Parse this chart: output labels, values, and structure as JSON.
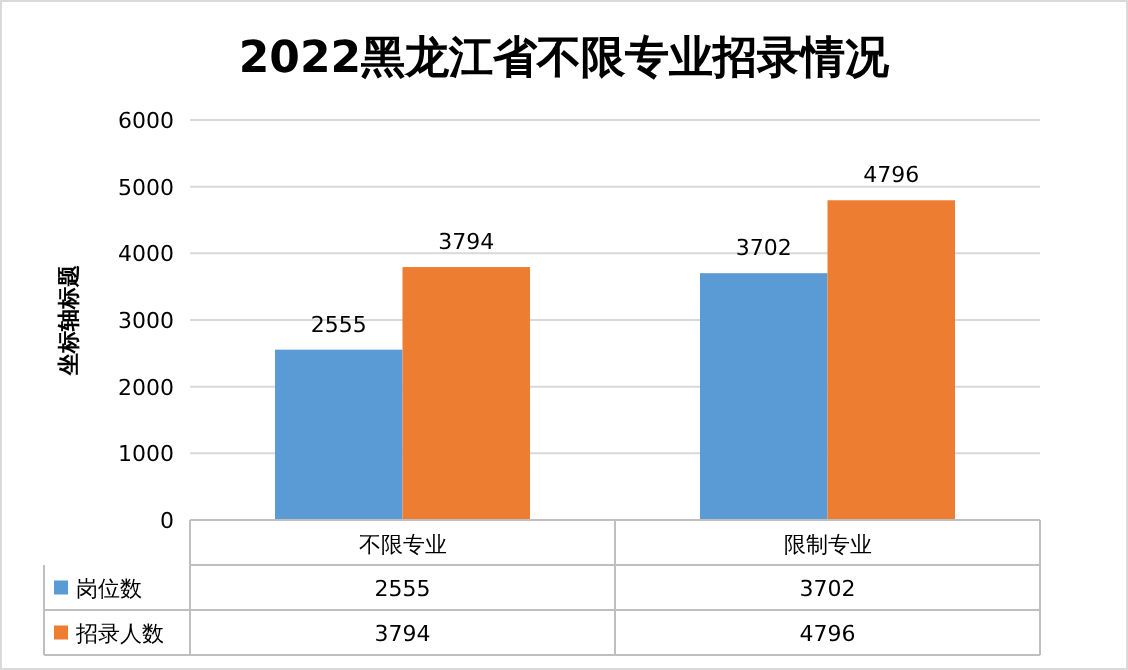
{
  "chart_data": {
    "type": "bar",
    "title": "2022黑龙江省不限专业招录情况",
    "ylabel": "坐标轴标题",
    "categories": [
      "不限专业",
      "限制专业"
    ],
    "series": [
      {
        "name": "岗位数",
        "color": "#5b9bd5",
        "values": [
          2555,
          3702
        ],
        "value_labels": [
          "2555",
          "3702"
        ]
      },
      {
        "name": "招录人数",
        "color": "#ed7d31",
        "values": [
          3794,
          4796
        ],
        "value_labels": [
          "3794",
          "4796"
        ]
      }
    ],
    "ylim": [
      0,
      6000
    ],
    "yticks": [
      0,
      1000,
      2000,
      3000,
      4000,
      5000,
      6000
    ],
    "annotations": [
      "2555",
      "3702",
      "3794",
      "4796"
    ],
    "grid": "y",
    "data_labels": true,
    "legend": "bottom left"
  }
}
